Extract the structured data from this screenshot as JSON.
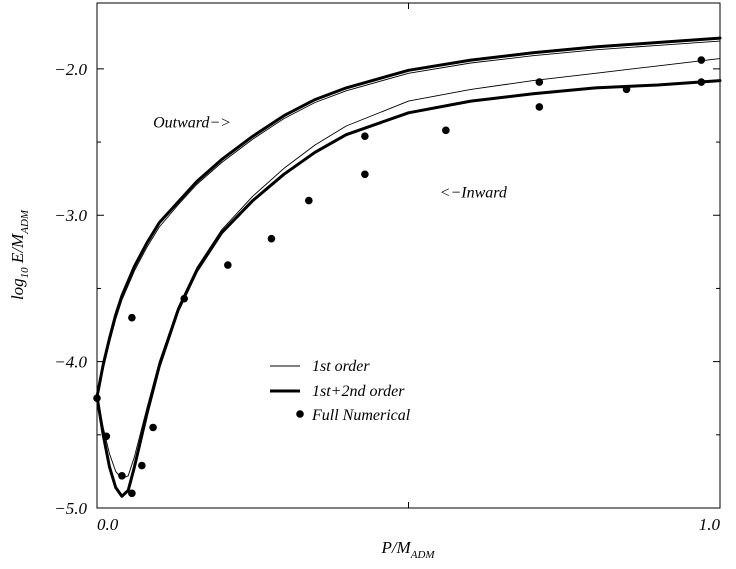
{
  "chart_data": {
    "type": "line",
    "xlabel_main": "P/M",
    "xlabel_sub": "ADM",
    "ylabel_main": "log",
    "ylabel_sub1": "10",
    "ylabel_mid": " E/M",
    "ylabel_sub2": "ADM",
    "xlim": [
      0.0,
      1.0
    ],
    "ylim": [
      -5.0,
      -1.55
    ],
    "x_ticks": [
      {
        "value": 0.0,
        "label": "0.0"
      },
      {
        "value": 1.0,
        "label": "1.0"
      }
    ],
    "x_minor": [
      0.5
    ],
    "y_ticks": [
      {
        "value": -2.0,
        "label": "−2.0"
      },
      {
        "value": -3.0,
        "label": "−3.0"
      },
      {
        "value": -4.0,
        "label": "−4.0"
      },
      {
        "value": -5.0,
        "label": "−5.0"
      }
    ],
    "y_minor": [
      -2.5,
      -3.5,
      -4.5
    ],
    "annotations": [
      {
        "text": "Outward−>",
        "x": 0.09,
        "y": -2.4
      },
      {
        "text": "<−Inward",
        "x": 0.55,
        "y": -2.88
      }
    ],
    "legend": {
      "position": "center-bottom",
      "entries": [
        {
          "label": "1st order",
          "style": "thin"
        },
        {
          "label": "1st+2nd order",
          "style": "thick"
        },
        {
          "label": "Full Numerical",
          "style": "dot"
        }
      ]
    },
    "series": [
      {
        "label": "1st order",
        "style": "thin",
        "x": [
          0.0,
          0.01,
          0.02,
          0.03,
          0.04,
          0.05,
          0.06,
          0.08,
          0.1,
          0.13,
          0.16,
          0.2,
          0.25,
          0.3,
          0.35,
          0.4,
          0.5,
          0.6,
          0.7,
          0.8,
          0.9,
          1.0
        ],
        "y": [
          -4.24,
          -4.45,
          -4.63,
          -4.75,
          -4.8,
          -4.78,
          -4.65,
          -4.32,
          -4.0,
          -3.63,
          -3.36,
          -3.1,
          -2.87,
          -2.68,
          -2.52,
          -2.39,
          -2.22,
          -2.14,
          -2.08,
          -2.03,
          -1.98,
          -1.93
        ]
      },
      {
        "label": "1st+2nd order",
        "style": "thick",
        "x": [
          0.0,
          0.01,
          0.02,
          0.03,
          0.04,
          0.05,
          0.06,
          0.08,
          0.1,
          0.13,
          0.16,
          0.2,
          0.25,
          0.3,
          0.35,
          0.4,
          0.5,
          0.6,
          0.7,
          0.8,
          0.9,
          1.0
        ],
        "y": [
          -4.24,
          -4.5,
          -4.72,
          -4.86,
          -4.92,
          -4.88,
          -4.72,
          -4.36,
          -4.03,
          -3.65,
          -3.38,
          -3.12,
          -2.9,
          -2.72,
          -2.57,
          -2.45,
          -2.3,
          -2.22,
          -2.17,
          -2.13,
          -2.11,
          -2.08
        ]
      },
      {
        "label": "1st order",
        "style": "thin",
        "x": [
          0.0,
          0.01,
          0.02,
          0.03,
          0.04,
          0.06,
          0.08,
          0.1,
          0.13,
          0.16,
          0.2,
          0.25,
          0.3,
          0.35,
          0.4,
          0.5,
          0.6,
          0.7,
          0.8,
          0.9,
          1.0
        ],
        "y": [
          -4.24,
          -4.05,
          -3.87,
          -3.71,
          -3.58,
          -3.38,
          -3.22,
          -3.08,
          -2.93,
          -2.79,
          -2.64,
          -2.48,
          -2.34,
          -2.23,
          -2.15,
          -2.03,
          -1.96,
          -1.91,
          -1.87,
          -1.84,
          -1.81
        ]
      },
      {
        "label": "1st+2nd order",
        "style": "thick",
        "x": [
          0.0,
          0.01,
          0.02,
          0.03,
          0.04,
          0.06,
          0.08,
          0.1,
          0.13,
          0.16,
          0.2,
          0.25,
          0.3,
          0.35,
          0.4,
          0.5,
          0.6,
          0.7,
          0.8,
          0.9,
          1.0
        ],
        "y": [
          -4.24,
          -4.02,
          -3.84,
          -3.68,
          -3.55,
          -3.35,
          -3.19,
          -3.05,
          -2.91,
          -2.77,
          -2.62,
          -2.46,
          -2.32,
          -2.21,
          -2.13,
          -2.01,
          -1.94,
          -1.89,
          -1.85,
          -1.82,
          -1.79
        ]
      },
      {
        "label": "Full Numerical",
        "style": "dot",
        "x": [
          0.0,
          0.015,
          0.04,
          0.056,
          0.072,
          0.09
        ],
        "y": [
          -4.25,
          -4.51,
          -4.78,
          -4.9,
          -4.71,
          -4.45
        ]
      },
      {
        "label": "Full Numerical",
        "style": "dot",
        "x": [
          0.056,
          0.14,
          0.21,
          0.28,
          0.34,
          0.43,
          0.56,
          0.71,
          0.85,
          0.97
        ],
        "y": [
          -3.7,
          -3.57,
          -3.34,
          -3.16,
          -2.9,
          -2.72,
          -2.42,
          -2.26,
          -2.14,
          -2.09
        ]
      },
      {
        "label": "Full Numerical",
        "style": "dot",
        "x": [
          0.43,
          0.71,
          0.97
        ],
        "y": [
          -2.46,
          -2.09,
          -1.94
        ]
      }
    ]
  }
}
